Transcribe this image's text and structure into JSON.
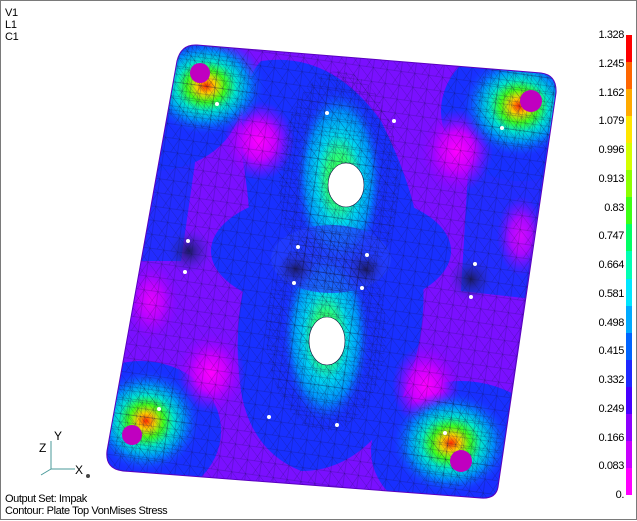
{
  "view": {
    "line1": "V1",
    "line2": "L1",
    "line3": "C1"
  },
  "triad": {
    "x": "X",
    "y": "Y",
    "z": "Z"
  },
  "footer": {
    "output_set": "Output Set: Impak",
    "contour": "Contour: Plate Top VonMises Stress"
  },
  "legend": {
    "labels": [
      "1.328",
      "1.245",
      "1.162",
      "1.079",
      "0.996",
      "0.913",
      "0.83",
      "0.747",
      "0.664",
      "0.581",
      "0.498",
      "0.415",
      "0.332",
      "0.249",
      "0.166",
      "0.083",
      "0."
    ],
    "colors": [
      "#ff0000",
      "#ff6600",
      "#ffaa00",
      "#ffe600",
      "#d4ff00",
      "#8cff00",
      "#3cff14",
      "#00ff64",
      "#00ffb4",
      "#00e6ff",
      "#00aaff",
      "#0064ff",
      "#1e28ff",
      "#4600ff",
      "#8c00ff",
      "#c800ff",
      "#ff00ff"
    ]
  },
  "colors": {
    "low": "#c000ff",
    "mid_low": "#5a00ff",
    "mid": "#1830ff",
    "mid_high": "#00d2ff",
    "high": "#3cff1e",
    "peak": "#ff2000",
    "hole": "#ffffff",
    "mesh": "#101040"
  }
}
